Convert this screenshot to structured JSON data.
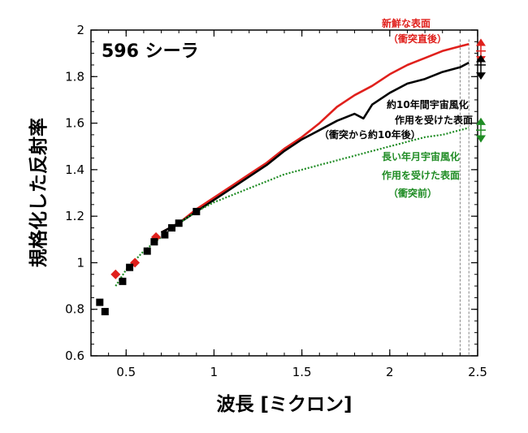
{
  "colors": {
    "fresh": "#e0201c",
    "weathered_10yr": "#000000",
    "weathered_long": "#1f8c24",
    "grid_guide": "#666666"
  },
  "chart_data": {
    "type": "line",
    "title": "596 シーラ",
    "xlabel": "波長 [ミクロン]",
    "ylabel": "規格化した反射率",
    "xlim": [
      0.3,
      2.5
    ],
    "ylim": [
      0.6,
      2.0
    ],
    "xticks": [
      0.5,
      1,
      1.5,
      2,
      2.5
    ],
    "xtick_labels": [
      "0.5",
      "1",
      "1.5",
      "2",
      "2.5"
    ],
    "yticks": [
      0.6,
      0.8,
      1,
      1.2,
      1.4,
      1.6,
      1.8,
      2
    ],
    "ytick_labels": [
      "0.6",
      "0.8",
      "1",
      "1.2",
      "1.4",
      "1.6",
      "1.8",
      "2"
    ],
    "grid": false,
    "legend": "none",
    "series": [
      {
        "key": "fresh",
        "style": "line",
        "color": "#e0201c",
        "x": [
          0.7,
          0.8,
          0.9,
          1.0,
          1.1,
          1.2,
          1.3,
          1.4,
          1.5,
          1.6,
          1.7,
          1.8,
          1.9,
          2.0,
          2.1,
          2.2,
          2.3,
          2.4,
          2.45
        ],
        "y": [
          1.13,
          1.17,
          1.23,
          1.28,
          1.33,
          1.38,
          1.43,
          1.49,
          1.54,
          1.6,
          1.67,
          1.72,
          1.76,
          1.81,
          1.85,
          1.88,
          1.91,
          1.93,
          1.94
        ]
      },
      {
        "key": "fresh_points",
        "style": "diamonds",
        "color": "#e0201c",
        "x": [
          0.44,
          0.55,
          0.67
        ],
        "y": [
          0.95,
          1.0,
          1.11
        ]
      },
      {
        "key": "weathered_10yr",
        "style": "line",
        "color": "#000000",
        "x": [
          0.7,
          0.8,
          0.9,
          1.0,
          1.1,
          1.2,
          1.3,
          1.4,
          1.5,
          1.6,
          1.7,
          1.8,
          1.85,
          1.9,
          2.0,
          2.1,
          2.2,
          2.3,
          2.4,
          2.45
        ],
        "y": [
          1.13,
          1.17,
          1.22,
          1.27,
          1.32,
          1.37,
          1.42,
          1.48,
          1.53,
          1.57,
          1.61,
          1.64,
          1.62,
          1.68,
          1.73,
          1.77,
          1.79,
          1.82,
          1.84,
          1.86
        ]
      },
      {
        "key": "weathered_10yr_points",
        "style": "squares",
        "color": "#000000",
        "x": [
          0.35,
          0.38,
          0.48,
          0.52,
          0.62,
          0.66,
          0.72,
          0.76,
          0.8,
          0.9
        ],
        "y": [
          0.83,
          0.79,
          0.92,
          0.98,
          1.05,
          1.09,
          1.12,
          1.15,
          1.17,
          1.22
        ]
      },
      {
        "key": "weathered_long",
        "style": "dotted",
        "color": "#1f8c24",
        "x": [
          0.44,
          0.5,
          0.55,
          0.6,
          0.7,
          0.8,
          0.9,
          1.0,
          1.1,
          1.2,
          1.3,
          1.4,
          1.5,
          1.6,
          1.7,
          1.8,
          1.9,
          2.0,
          2.1,
          2.2,
          2.3,
          2.4,
          2.45
        ],
        "y": [
          0.9,
          0.97,
          1.01,
          1.05,
          1.11,
          1.17,
          1.22,
          1.26,
          1.29,
          1.32,
          1.35,
          1.38,
          1.4,
          1.42,
          1.44,
          1.46,
          1.48,
          1.5,
          1.52,
          1.54,
          1.55,
          1.57,
          1.58
        ]
      }
    ],
    "annotations": {
      "fresh": [
        "新鮮な表面",
        "（衝突直後）"
      ],
      "weathered_10yr": [
        "約10年間宇宙風化",
        "作用を受けた表面",
        "（衝突から約10年後）"
      ],
      "weathered_long": [
        "長い年月宇宙風化",
        "作用を受けた表面",
        "（衝突前）"
      ]
    },
    "error_markers": [
      {
        "color": "#e0201c",
        "y": 1.91,
        "range": [
          1.86,
          1.96
        ]
      },
      {
        "color": "#000000",
        "y": 1.85,
        "range": [
          1.79,
          1.89
        ]
      },
      {
        "color": "#1f8c24",
        "y": 1.57,
        "range": [
          1.52,
          1.62
        ]
      }
    ],
    "guide_x": [
      2.4,
      2.45
    ]
  }
}
